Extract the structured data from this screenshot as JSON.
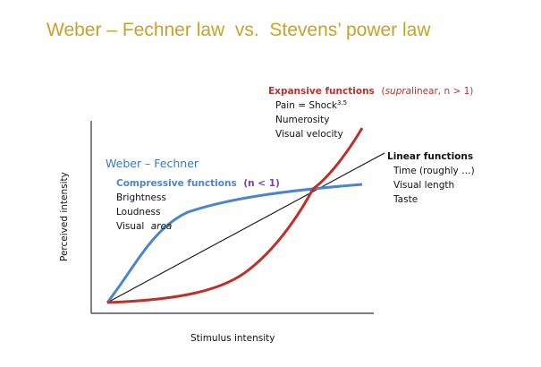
{
  "title": "Weber – Fechner law  vs.  Stevens’ power law",
  "colors": {
    "title": "#c9a227",
    "expansive": "#c0302b",
    "compressive": "#4a86c8",
    "weber": "#3b78c0",
    "linear": "#111111",
    "axes": "#333333"
  },
  "axes": {
    "x_label": "Stimulus intensity",
    "y_label": "Perceived intensity"
  },
  "weber_fechner": {
    "label": "Weber – Fechner"
  },
  "compressive": {
    "heading": "Compressive functions",
    "condition": "(n < 1)",
    "items": [
      "Brightness",
      "Loudness",
      "Visual"
    ],
    "item3_italic": "area"
  },
  "expansive": {
    "heading": "Expansive functions",
    "condition_open": "(",
    "condition_italic": "supra",
    "condition_rest": "linear, n > 1)",
    "item1_prefix": "Pain = Shock",
    "item1_exponent": "3.5",
    "items": [
      "Numerosity",
      "Visual velocity"
    ]
  },
  "linear": {
    "heading": "Linear functions",
    "items": [
      "Time (roughly …)",
      "Visual length",
      "Taste"
    ]
  }
}
